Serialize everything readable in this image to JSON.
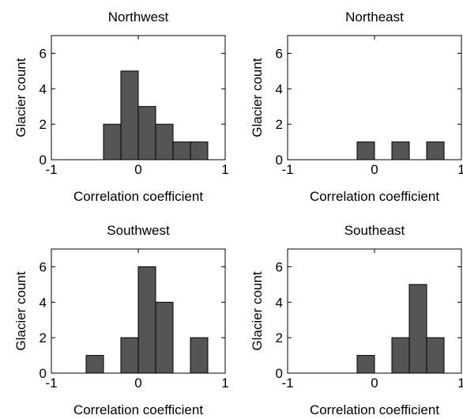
{
  "style": {
    "bar_fill": "#555555",
    "bar_stroke": "#000000",
    "axis_color": "#000000",
    "background": "#ffffff"
  },
  "chart_data": [
    {
      "type": "bar",
      "title": "Northwest",
      "xlabel": "Correlation coefficient",
      "ylabel": "Glacier count",
      "xlim": [
        -1,
        1
      ],
      "ylim": [
        0,
        7
      ],
      "xticks": [
        -1,
        0,
        1
      ],
      "yticks": [
        0,
        2,
        4,
        6
      ],
      "xtick_labels": [
        "-1",
        "0",
        "1"
      ],
      "ytick_labels": [
        "0",
        "2",
        "4",
        "6"
      ],
      "bin_width": 0.2,
      "bins": [
        {
          "x": -0.3,
          "count": 2
        },
        {
          "x": -0.1,
          "count": 5
        },
        {
          "x": 0.1,
          "count": 3
        },
        {
          "x": 0.3,
          "count": 2
        },
        {
          "x": 0.5,
          "count": 1
        },
        {
          "x": 0.7,
          "count": 1
        }
      ]
    },
    {
      "type": "bar",
      "title": "Northeast",
      "xlabel": "Correlation coefficient",
      "ylabel": "Glacier count",
      "xlim": [
        -1,
        1
      ],
      "ylim": [
        0,
        7
      ],
      "xticks": [
        -1,
        0,
        1
      ],
      "yticks": [
        0,
        2,
        4,
        6
      ],
      "xtick_labels": [
        "-1",
        "0",
        "1"
      ],
      "ytick_labels": [
        "0",
        "2",
        "4",
        "6"
      ],
      "bin_width": 0.2,
      "bins": [
        {
          "x": -0.1,
          "count": 1
        },
        {
          "x": 0.3,
          "count": 1
        },
        {
          "x": 0.7,
          "count": 1
        }
      ]
    },
    {
      "type": "bar",
      "title": "Southwest",
      "xlabel": "Correlation coefficient",
      "ylabel": "Glacier count",
      "xlim": [
        -1,
        1
      ],
      "ylim": [
        0,
        7
      ],
      "xticks": [
        -1,
        0,
        1
      ],
      "yticks": [
        0,
        2,
        4,
        6
      ],
      "xtick_labels": [
        "-1",
        "0",
        "1"
      ],
      "ytick_labels": [
        "0",
        "2",
        "4",
        "6"
      ],
      "bin_width": 0.2,
      "bins": [
        {
          "x": -0.5,
          "count": 1
        },
        {
          "x": -0.1,
          "count": 2
        },
        {
          "x": 0.1,
          "count": 6
        },
        {
          "x": 0.3,
          "count": 4
        },
        {
          "x": 0.7,
          "count": 2
        }
      ]
    },
    {
      "type": "bar",
      "title": "Southeast",
      "xlabel": "Correlation coefficient",
      "ylabel": "Glacier count",
      "xlim": [
        -1,
        1
      ],
      "ylim": [
        0,
        7
      ],
      "xticks": [
        -1,
        0,
        1
      ],
      "yticks": [
        0,
        2,
        4,
        6
      ],
      "xtick_labels": [
        "-1",
        "0",
        "1"
      ],
      "ytick_labels": [
        "0",
        "2",
        "4",
        "6"
      ],
      "bin_width": 0.2,
      "bins": [
        {
          "x": -0.1,
          "count": 1
        },
        {
          "x": 0.3,
          "count": 2
        },
        {
          "x": 0.5,
          "count": 5
        },
        {
          "x": 0.7,
          "count": 2
        }
      ]
    }
  ]
}
